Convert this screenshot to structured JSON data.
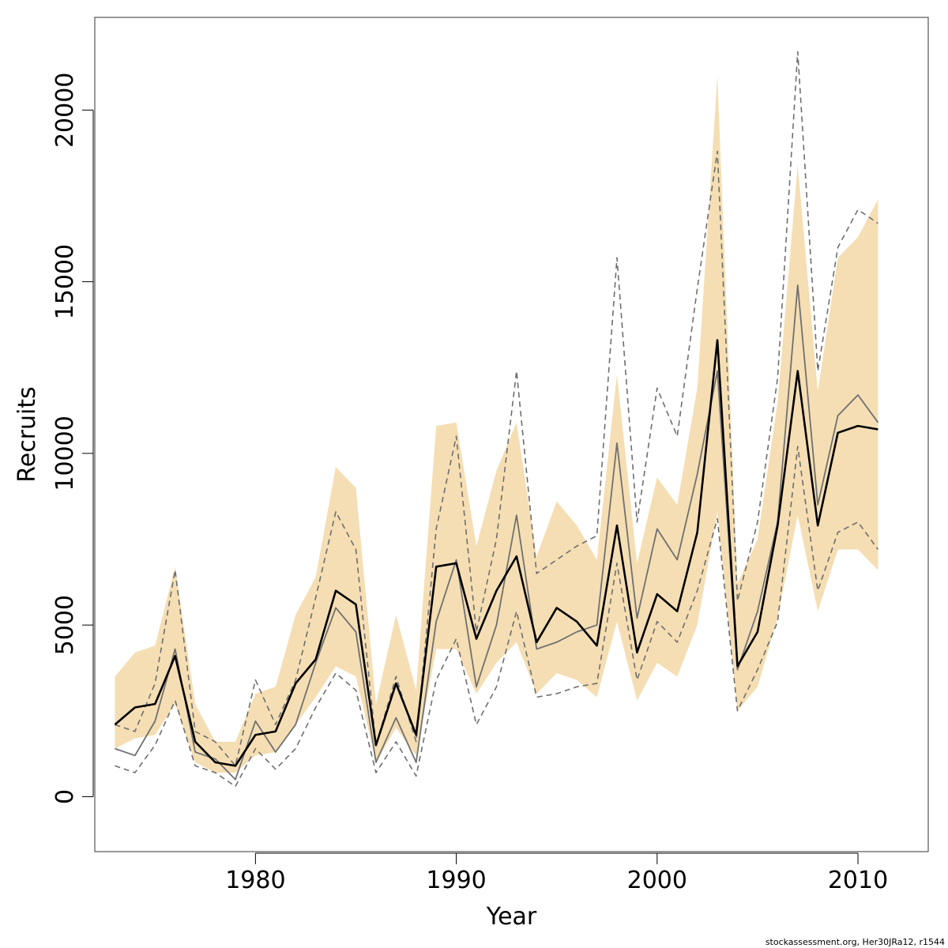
{
  "chart_data": {
    "type": "line",
    "title": "",
    "xlabel": "Year",
    "ylabel": "Recruits",
    "xlim": [
      1972,
      2013.5
    ],
    "ylim": [
      -1600,
      22700
    ],
    "xticks": [
      1980,
      1990,
      2000,
      2010
    ],
    "yticks": [
      0,
      5000,
      10000,
      15000,
      20000
    ],
    "grid": false,
    "legend": "none",
    "credit": "stockassessment.org, Her30JRa12, r1544",
    "colors": {
      "band": "#f5deb3",
      "estimate": "#000000",
      "alt_estimate": "#707070",
      "alt_bounds": "#6e6e6e"
    },
    "x": [
      1973,
      1974,
      1975,
      1976,
      1977,
      1978,
      1979,
      1980,
      1981,
      1982,
      1983,
      1984,
      1985,
      1986,
      1987,
      1988,
      1989,
      1990,
      1991,
      1992,
      1993,
      1994,
      1995,
      1996,
      1997,
      1998,
      1999,
      2000,
      2001,
      2002,
      2003,
      2004,
      2005,
      2006,
      2007,
      2008,
      2009,
      2010,
      2011
    ],
    "series": [
      {
        "role": "band",
        "lower": [
          1400,
          1700,
          1800,
          2700,
          1000,
          700,
          700,
          1200,
          1300,
          2100,
          2900,
          3800,
          3500,
          1000,
          2000,
          1200,
          4300,
          4300,
          3000,
          3900,
          4500,
          3000,
          3600,
          3400,
          2900,
          5100,
          2800,
          3900,
          3500,
          5000,
          8300,
          2500,
          3200,
          5200,
          8200,
          5400,
          7200,
          7200,
          6600
        ],
        "upper": [
          3500,
          4200,
          4400,
          6700,
          2700,
          1600,
          1600,
          3000,
          3200,
          5300,
          6400,
          9600,
          9000,
          2700,
          5300,
          3100,
          10800,
          10900,
          7300,
          9500,
          10900,
          7000,
          8600,
          7900,
          6900,
          12300,
          6800,
          9300,
          8500,
          11900,
          21000,
          6200,
          7500,
          11500,
          18400,
          11800,
          15700,
          16300,
          17400
        ]
      },
      {
        "role": "estimate",
        "values": [
          2100,
          2600,
          2700,
          4100,
          1600,
          1000,
          900,
          1800,
          1900,
          3300,
          4000,
          6000,
          5600,
          1500,
          3300,
          1800,
          6700,
          6800,
          4600,
          6000,
          7000,
          4500,
          5500,
          5100,
          4400,
          7900,
          4200,
          5900,
          5400,
          7700,
          13300,
          3800,
          4800,
          7900,
          12400,
          7900,
          10600,
          10800,
          10700
        ]
      },
      {
        "role": "alt_estimate",
        "values": [
          1400,
          1200,
          2200,
          4300,
          1300,
          1100,
          500,
          2200,
          1300,
          2100,
          3900,
          5500,
          4800,
          1000,
          2300,
          1000,
          5100,
          6900,
          3200,
          5000,
          8200,
          4300,
          4500,
          4800,
          5000,
          10300,
          5200,
          7800,
          6900,
          9400,
          12400,
          3700,
          5400,
          8000,
          14900,
          8500,
          11100,
          11700,
          10900
        ]
      },
      {
        "role": "alt_bounds",
        "lower": [
          900,
          700,
          1500,
          2800,
          900,
          700,
          300,
          1400,
          800,
          1400,
          2600,
          3600,
          3100,
          700,
          1600,
          600,
          3400,
          4600,
          2100,
          3200,
          5400,
          2900,
          3000,
          3200,
          3300,
          6800,
          3400,
          5100,
          4500,
          6000,
          8100,
          2500,
          3700,
          5100,
          10200,
          6000,
          7700,
          8000,
          7200
        ],
        "upper": [
          2100,
          1900,
          3300,
          6600,
          1900,
          1600,
          900,
          3400,
          2100,
          3400,
          5800,
          8300,
          7200,
          1500,
          3500,
          1600,
          7800,
          10500,
          4800,
          7500,
          12400,
          6500,
          6900,
          7300,
          7600,
          15700,
          8000,
          11900,
          10500,
          14800,
          18800,
          5700,
          8000,
          12200,
          21700,
          12400,
          16000,
          17100,
          16700
        ]
      }
    ]
  }
}
